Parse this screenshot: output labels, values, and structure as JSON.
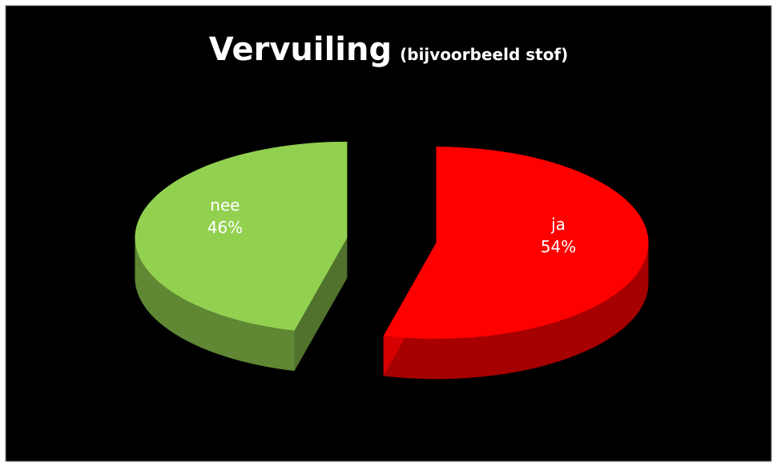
{
  "chart_data": {
    "type": "pie",
    "title": "Vervuiling",
    "subtitle": "(bijvoorbeeld stof)",
    "categories": [
      "ja",
      "nee"
    ],
    "values": [
      54,
      46
    ],
    "value_labels": [
      "54%",
      "46%"
    ],
    "colors": [
      "#ff0000",
      "#92d050"
    ]
  }
}
